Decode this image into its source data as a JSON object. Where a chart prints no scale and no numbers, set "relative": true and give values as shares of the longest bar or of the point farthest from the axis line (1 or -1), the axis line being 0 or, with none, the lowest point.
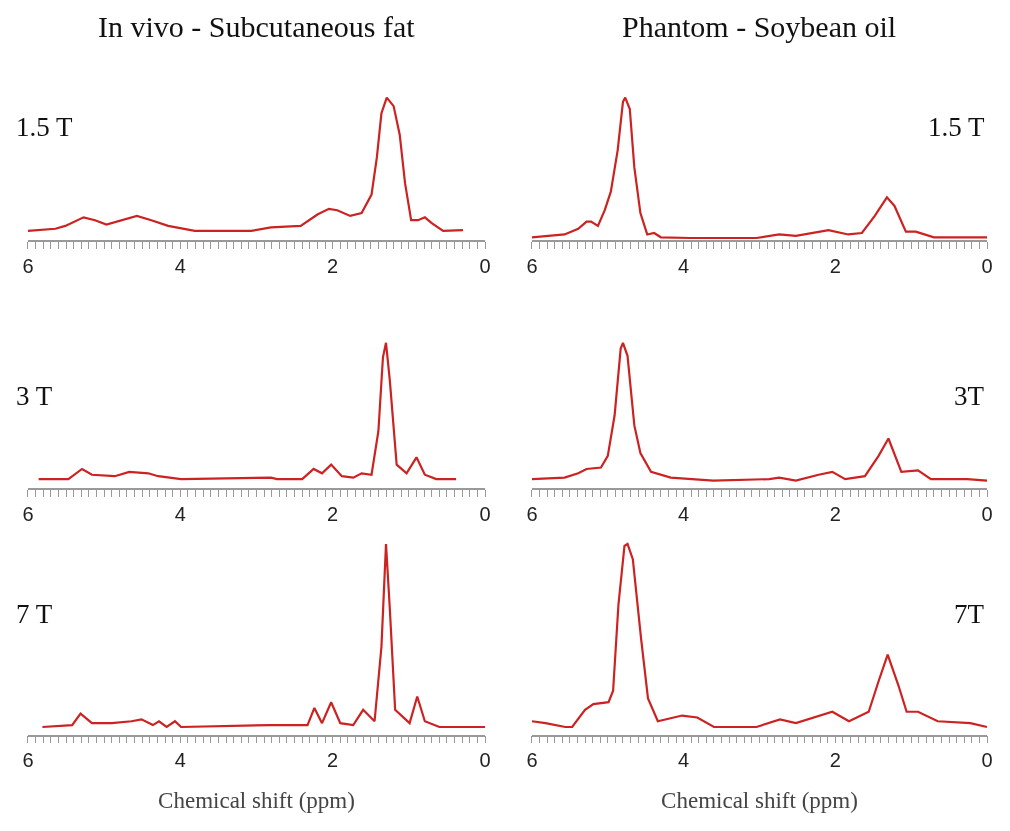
{
  "chart_data": [
    {
      "type": "line",
      "title": "In vivo - Subcutaneous fat",
      "relative": true,
      "annotations": [
        "1.5 T"
      ],
      "xlim": [
        6,
        0
      ],
      "xticks": [
        6,
        {
          "value": 5.9,
          "label": null
        },
        {
          "value": 5.8,
          "label": null
        },
        {
          "value": 5.7,
          "label": null
        },
        {
          "value": 5.6,
          "label": null
        },
        {
          "value": 5.5,
          "label": null
        },
        {
          "value": 5.4,
          "label": null
        },
        {
          "value": 5.3,
          "label": null
        },
        {
          "value": 5.2,
          "label": null
        },
        {
          "value": 5.1,
          "label": null
        },
        {
          "value": 5,
          "label": null
        },
        {
          "value": 4.9,
          "label": null
        },
        {
          "value": 4.8,
          "label": null
        },
        {
          "value": 4.7,
          "label": null
        },
        {
          "value": 4.6,
          "label": null
        },
        {
          "value": 4.5,
          "label": null
        },
        {
          "value": 4.4,
          "label": null
        },
        {
          "value": 4.3,
          "label": null
        },
        {
          "value": 4.2,
          "label": null
        },
        {
          "value": 4.1,
          "label": null
        },
        4,
        {
          "value": 3.9,
          "label": null
        },
        {
          "value": 3.8,
          "label": null
        },
        {
          "value": 3.7,
          "label": null
        },
        {
          "value": 3.6,
          "label": null
        },
        {
          "value": 3.5,
          "label": null
        },
        {
          "value": 3.4,
          "label": null
        },
        {
          "value": 3.3,
          "label": null
        },
        {
          "value": 3.2,
          "label": null
        },
        {
          "value": 3.1,
          "label": null
        },
        {
          "value": 3,
          "label": null
        },
        {
          "value": 2.9,
          "label": null
        },
        {
          "value": 2.8,
          "label": null
        },
        {
          "value": 2.7,
          "label": null
        },
        {
          "value": 2.6,
          "label": null
        },
        {
          "value": 2.5,
          "label": null
        },
        {
          "value": 2.4,
          "label": null
        },
        {
          "value": 2.3,
          "label": null
        },
        {
          "value": 2.2,
          "label": null
        },
        {
          "value": 2.1,
          "label": null
        },
        2,
        {
          "value": 1.9,
          "label": null
        },
        {
          "value": 1.8,
          "label": null
        },
        {
          "value": 1.7,
          "label": null
        },
        {
          "value": 1.6,
          "label": null
        },
        {
          "value": 1.5,
          "label": null
        },
        {
          "value": 1.4,
          "label": null
        },
        {
          "value": 1.3,
          "label": null
        },
        {
          "value": 1.2,
          "label": null
        },
        {
          "value": 1.1,
          "label": null
        },
        {
          "value": 1,
          "label": null
        },
        {
          "value": 0.9,
          "label": null
        },
        {
          "value": 0.8,
          "label": null
        },
        {
          "value": 0.7,
          "label": null
        },
        {
          "value": 0.6,
          "label": null
        },
        {
          "value": 0.5,
          "label": null
        },
        {
          "value": 0.4,
          "label": null
        },
        {
          "value": 0.3,
          "label": null
        },
        {
          "value": 0.2,
          "label": null
        },
        {
          "value": 0.1,
          "label": null
        },
        0
      ],
      "grid": false,
      "legend": false,
      "series": [
        {
          "color": "#cc2222",
          "x": [
            6.0,
            5.64,
            5.51,
            5.27,
            5.12,
            4.97,
            4.57,
            4.38,
            4.16,
            3.81,
            3.07,
            2.81,
            2.42,
            2.2,
            2.05,
            1.94,
            1.77,
            1.62,
            1.49,
            1.42,
            1.36,
            1.29,
            1.2,
            1.12,
            1.05,
            0.97,
            0.88,
            0.79,
            0.7,
            0.55,
            0.29
          ],
          "values": [
            0.065,
            0.08,
            0.1,
            0.16,
            0.14,
            0.11,
            0.17,
            0.14,
            0.1,
            0.065,
            0.065,
            0.09,
            0.1,
            0.18,
            0.22,
            0.21,
            0.17,
            0.19,
            0.32,
            0.58,
            0.89,
            1,
            0.94,
            0.74,
            0.4,
            0.14,
            0.14,
            0.16,
            0.12,
            0.065,
            0.07
          ]
        }
      ]
    },
    {
      "type": "line",
      "title": "Phantom - Soybean oil",
      "relative": true,
      "annotations": [
        "1.5 T"
      ],
      "xlim": [
        6,
        0
      ],
      "xticks": [
        6,
        {
          "value": 5.9,
          "label": null
        },
        {
          "value": 5.8,
          "label": null
        },
        {
          "value": 5.7,
          "label": null
        },
        {
          "value": 5.6,
          "label": null
        },
        {
          "value": 5.5,
          "label": null
        },
        {
          "value": 5.4,
          "label": null
        },
        {
          "value": 5.3,
          "label": null
        },
        {
          "value": 5.2,
          "label": null
        },
        {
          "value": 5.1,
          "label": null
        },
        {
          "value": 5,
          "label": null
        },
        {
          "value": 4.9,
          "label": null
        },
        {
          "value": 4.8,
          "label": null
        },
        {
          "value": 4.7,
          "label": null
        },
        {
          "value": 4.6,
          "label": null
        },
        {
          "value": 4.5,
          "label": null
        },
        {
          "value": 4.4,
          "label": null
        },
        {
          "value": 4.3,
          "label": null
        },
        {
          "value": 4.2,
          "label": null
        },
        {
          "value": 4.1,
          "label": null
        },
        4,
        {
          "value": 3.9,
          "label": null
        },
        {
          "value": 3.8,
          "label": null
        },
        {
          "value": 3.7,
          "label": null
        },
        {
          "value": 3.6,
          "label": null
        },
        {
          "value": 3.5,
          "label": null
        },
        {
          "value": 3.4,
          "label": null
        },
        {
          "value": 3.3,
          "label": null
        },
        {
          "value": 3.2,
          "label": null
        },
        {
          "value": 3.1,
          "label": null
        },
        {
          "value": 3,
          "label": null
        },
        {
          "value": 2.9,
          "label": null
        },
        {
          "value": 2.8,
          "label": null
        },
        {
          "value": 2.7,
          "label": null
        },
        {
          "value": 2.6,
          "label": null
        },
        {
          "value": 2.5,
          "label": null
        },
        {
          "value": 2.4,
          "label": null
        },
        {
          "value": 2.3,
          "label": null
        },
        {
          "value": 2.2,
          "label": null
        },
        {
          "value": 2.1,
          "label": null
        },
        2,
        {
          "value": 1.9,
          "label": null
        },
        {
          "value": 1.8,
          "label": null
        },
        {
          "value": 1.7,
          "label": null
        },
        {
          "value": 1.6,
          "label": null
        },
        {
          "value": 1.5,
          "label": null
        },
        {
          "value": 1.4,
          "label": null
        },
        {
          "value": 1.3,
          "label": null
        },
        {
          "value": 1.2,
          "label": null
        },
        {
          "value": 1.1,
          "label": null
        },
        {
          "value": 1,
          "label": null
        },
        {
          "value": 0.9,
          "label": null
        },
        {
          "value": 0.8,
          "label": null
        },
        {
          "value": 0.7,
          "label": null
        },
        {
          "value": 0.6,
          "label": null
        },
        {
          "value": 0.5,
          "label": null
        },
        {
          "value": 0.4,
          "label": null
        },
        {
          "value": 0.3,
          "label": null
        },
        {
          "value": 0.2,
          "label": null
        },
        {
          "value": 0.1,
          "label": null
        },
        0
      ],
      "grid": false,
      "legend": false,
      "series": [
        {
          "color": "#cc2222",
          "x": [
            6.0,
            5.57,
            5.39,
            5.28,
            5.22,
            5.13,
            5.04,
            4.96,
            4.87,
            4.8,
            4.77,
            4.71,
            4.65,
            4.57,
            4.48,
            4.39,
            4.3,
            3.91,
            3.04,
            2.74,
            2.52,
            2.09,
            1.83,
            1.65,
            1.48,
            1.32,
            1.22,
            1.07,
            0.94,
            0.7,
            0
          ],
          "values": [
            0.02,
            0.04,
            0.08,
            0.13,
            0.13,
            0.1,
            0.21,
            0.34,
            0.63,
            0.97,
            1,
            0.92,
            0.51,
            0.19,
            0.04,
            0.05,
            0.02,
            0.015,
            0.015,
            0.04,
            0.03,
            0.07,
            0.04,
            0.05,
            0.17,
            0.3,
            0.24,
            0.06,
            0.06,
            0.02,
            0.02
          ]
        }
      ]
    },
    {
      "type": "line",
      "relative": true,
      "annotations": [
        "3 T"
      ],
      "xlim": [
        6,
        0
      ],
      "xticks": [
        6,
        {
          "value": 5.9,
          "label": null
        },
        {
          "value": 5.8,
          "label": null
        },
        {
          "value": 5.7,
          "label": null
        },
        {
          "value": 5.6,
          "label": null
        },
        {
          "value": 5.5,
          "label": null
        },
        {
          "value": 5.4,
          "label": null
        },
        {
          "value": 5.3,
          "label": null
        },
        {
          "value": 5.2,
          "label": null
        },
        {
          "value": 5.1,
          "label": null
        },
        {
          "value": 5,
          "label": null
        },
        {
          "value": 4.9,
          "label": null
        },
        {
          "value": 4.8,
          "label": null
        },
        {
          "value": 4.7,
          "label": null
        },
        {
          "value": 4.6,
          "label": null
        },
        {
          "value": 4.5,
          "label": null
        },
        {
          "value": 4.4,
          "label": null
        },
        {
          "value": 4.3,
          "label": null
        },
        {
          "value": 4.2,
          "label": null
        },
        {
          "value": 4.1,
          "label": null
        },
        4,
        {
          "value": 3.9,
          "label": null
        },
        {
          "value": 3.8,
          "label": null
        },
        {
          "value": 3.7,
          "label": null
        },
        {
          "value": 3.6,
          "label": null
        },
        {
          "value": 3.5,
          "label": null
        },
        {
          "value": 3.4,
          "label": null
        },
        {
          "value": 3.3,
          "label": null
        },
        {
          "value": 3.2,
          "label": null
        },
        {
          "value": 3.1,
          "label": null
        },
        {
          "value": 3,
          "label": null
        },
        {
          "value": 2.9,
          "label": null
        },
        {
          "value": 2.8,
          "label": null
        },
        {
          "value": 2.7,
          "label": null
        },
        {
          "value": 2.6,
          "label": null
        },
        {
          "value": 2.5,
          "label": null
        },
        {
          "value": 2.4,
          "label": null
        },
        {
          "value": 2.3,
          "label": null
        },
        {
          "value": 2.2,
          "label": null
        },
        {
          "value": 2.1,
          "label": null
        },
        2,
        {
          "value": 1.9,
          "label": null
        },
        {
          "value": 1.8,
          "label": null
        },
        {
          "value": 1.7,
          "label": null
        },
        {
          "value": 1.6,
          "label": null
        },
        {
          "value": 1.5,
          "label": null
        },
        {
          "value": 1.4,
          "label": null
        },
        {
          "value": 1.3,
          "label": null
        },
        {
          "value": 1.2,
          "label": null
        },
        {
          "value": 1.1,
          "label": null
        },
        {
          "value": 1,
          "label": null
        },
        {
          "value": 0.9,
          "label": null
        },
        {
          "value": 0.8,
          "label": null
        },
        {
          "value": 0.7,
          "label": null
        },
        {
          "value": 0.6,
          "label": null
        },
        {
          "value": 0.5,
          "label": null
        },
        {
          "value": 0.4,
          "label": null
        },
        {
          "value": 0.3,
          "label": null
        },
        {
          "value": 0.2,
          "label": null
        },
        {
          "value": 0.1,
          "label": null
        },
        0
      ],
      "grid": false,
      "legend": false,
      "series": [
        {
          "color": "#cc2222",
          "x": [
            5.86,
            5.47,
            5.29,
            5.16,
            4.86,
            4.67,
            4.42,
            4.29,
            3.99,
            2.81,
            2.73,
            2.4,
            2.25,
            2.14,
            2.02,
            1.88,
            1.73,
            1.62,
            1.49,
            1.4,
            1.34,
            1.3,
            1.25,
            1.16,
            1.03,
            0.9,
            0.79,
            0.64,
            0.38
          ],
          "values": [
            0.06,
            0.06,
            0.13,
            0.09,
            0.08,
            0.11,
            0.1,
            0.08,
            0.06,
            0.07,
            0.06,
            0.06,
            0.13,
            0.1,
            0.16,
            0.08,
            0.07,
            0.1,
            0.09,
            0.39,
            0.9,
            1,
            0.74,
            0.16,
            0.1,
            0.21,
            0.09,
            0.06,
            0.06
          ]
        }
      ]
    },
    {
      "type": "line",
      "relative": true,
      "annotations": [
        "3T"
      ],
      "xlim": [
        6,
        0
      ],
      "xticks": [
        6,
        {
          "value": 5.9,
          "label": null
        },
        {
          "value": 5.8,
          "label": null
        },
        {
          "value": 5.7,
          "label": null
        },
        {
          "value": 5.6,
          "label": null
        },
        {
          "value": 5.5,
          "label": null
        },
        {
          "value": 5.4,
          "label": null
        },
        {
          "value": 5.3,
          "label": null
        },
        {
          "value": 5.2,
          "label": null
        },
        {
          "value": 5.1,
          "label": null
        },
        {
          "value": 5,
          "label": null
        },
        {
          "value": 4.9,
          "label": null
        },
        {
          "value": 4.8,
          "label": null
        },
        {
          "value": 4.7,
          "label": null
        },
        {
          "value": 4.6,
          "label": null
        },
        {
          "value": 4.5,
          "label": null
        },
        {
          "value": 4.4,
          "label": null
        },
        {
          "value": 4.3,
          "label": null
        },
        {
          "value": 4.2,
          "label": null
        },
        {
          "value": 4.1,
          "label": null
        },
        4,
        {
          "value": 3.9,
          "label": null
        },
        {
          "value": 3.8,
          "label": null
        },
        {
          "value": 3.7,
          "label": null
        },
        {
          "value": 3.6,
          "label": null
        },
        {
          "value": 3.5,
          "label": null
        },
        {
          "value": 3.4,
          "label": null
        },
        {
          "value": 3.3,
          "label": null
        },
        {
          "value": 3.2,
          "label": null
        },
        {
          "value": 3.1,
          "label": null
        },
        {
          "value": 3,
          "label": null
        },
        {
          "value": 2.9,
          "label": null
        },
        {
          "value": 2.8,
          "label": null
        },
        {
          "value": 2.7,
          "label": null
        },
        {
          "value": 2.6,
          "label": null
        },
        {
          "value": 2.5,
          "label": null
        },
        {
          "value": 2.4,
          "label": null
        },
        {
          "value": 2.3,
          "label": null
        },
        {
          "value": 2.2,
          "label": null
        },
        {
          "value": 2.1,
          "label": null
        },
        2,
        {
          "value": 1.9,
          "label": null
        },
        {
          "value": 1.8,
          "label": null
        },
        {
          "value": 1.7,
          "label": null
        },
        {
          "value": 1.6,
          "label": null
        },
        {
          "value": 1.5,
          "label": null
        },
        {
          "value": 1.4,
          "label": null
        },
        {
          "value": 1.3,
          "label": null
        },
        {
          "value": 1.2,
          "label": null
        },
        {
          "value": 1.1,
          "label": null
        },
        {
          "value": 1,
          "label": null
        },
        {
          "value": 0.9,
          "label": null
        },
        {
          "value": 0.8,
          "label": null
        },
        {
          "value": 0.7,
          "label": null
        },
        {
          "value": 0.6,
          "label": null
        },
        {
          "value": 0.5,
          "label": null
        },
        {
          "value": 0.4,
          "label": null
        },
        {
          "value": 0.3,
          "label": null
        },
        {
          "value": 0.2,
          "label": null
        },
        {
          "value": 0.1,
          "label": null
        },
        0
      ],
      "grid": false,
      "legend": false,
      "series": [
        {
          "color": "#cc2222",
          "x": [
            6.0,
            5.57,
            5.39,
            5.28,
            5.09,
            5.0,
            4.91,
            4.83,
            4.8,
            4.74,
            4.65,
            4.57,
            4.43,
            4.17,
            3.61,
            2.87,
            2.74,
            2.52,
            2.22,
            2.04,
            1.87,
            1.61,
            1.43,
            1.3,
            1.13,
            0.91,
            0.74,
            0.26,
            0
          ],
          "values": [
            0.06,
            0.07,
            0.1,
            0.13,
            0.14,
            0.22,
            0.5,
            0.96,
            1,
            0.91,
            0.43,
            0.24,
            0.11,
            0.07,
            0.05,
            0.06,
            0.07,
            0.05,
            0.09,
            0.11,
            0.06,
            0.08,
            0.22,
            0.34,
            0.11,
            0.12,
            0.06,
            0.06,
            0.05
          ]
        }
      ]
    },
    {
      "type": "line",
      "relative": true,
      "annotations": [
        "7 T"
      ],
      "xlabel": "Chemical shift (ppm)",
      "xlim": [
        6,
        0
      ],
      "xticks": [
        6,
        {
          "value": 5.9,
          "label": null
        },
        {
          "value": 5.8,
          "label": null
        },
        {
          "value": 5.7,
          "label": null
        },
        {
          "value": 5.6,
          "label": null
        },
        {
          "value": 5.5,
          "label": null
        },
        {
          "value": 5.4,
          "label": null
        },
        {
          "value": 5.3,
          "label": null
        },
        {
          "value": 5.2,
          "label": null
        },
        {
          "value": 5.1,
          "label": null
        },
        {
          "value": 5,
          "label": null
        },
        {
          "value": 4.9,
          "label": null
        },
        {
          "value": 4.8,
          "label": null
        },
        {
          "value": 4.7,
          "label": null
        },
        {
          "value": 4.6,
          "label": null
        },
        {
          "value": 4.5,
          "label": null
        },
        {
          "value": 4.4,
          "label": null
        },
        {
          "value": 4.3,
          "label": null
        },
        {
          "value": 4.2,
          "label": null
        },
        {
          "value": 4.1,
          "label": null
        },
        4,
        {
          "value": 3.9,
          "label": null
        },
        {
          "value": 3.8,
          "label": null
        },
        {
          "value": 3.7,
          "label": null
        },
        {
          "value": 3.6,
          "label": null
        },
        {
          "value": 3.5,
          "label": null
        },
        {
          "value": 3.4,
          "label": null
        },
        {
          "value": 3.3,
          "label": null
        },
        {
          "value": 3.2,
          "label": null
        },
        {
          "value": 3.1,
          "label": null
        },
        {
          "value": 3,
          "label": null
        },
        {
          "value": 2.9,
          "label": null
        },
        {
          "value": 2.8,
          "label": null
        },
        {
          "value": 2.7,
          "label": null
        },
        {
          "value": 2.6,
          "label": null
        },
        {
          "value": 2.5,
          "label": null
        },
        {
          "value": 2.4,
          "label": null
        },
        {
          "value": 2.3,
          "label": null
        },
        {
          "value": 2.2,
          "label": null
        },
        {
          "value": 2.1,
          "label": null
        },
        2,
        {
          "value": 1.9,
          "label": null
        },
        {
          "value": 1.8,
          "label": null
        },
        {
          "value": 1.7,
          "label": null
        },
        {
          "value": 1.6,
          "label": null
        },
        {
          "value": 1.5,
          "label": null
        },
        {
          "value": 1.4,
          "label": null
        },
        {
          "value": 1.3,
          "label": null
        },
        {
          "value": 1.2,
          "label": null
        },
        {
          "value": 1.1,
          "label": null
        },
        {
          "value": 1,
          "label": null
        },
        {
          "value": 0.9,
          "label": null
        },
        {
          "value": 0.8,
          "label": null
        },
        {
          "value": 0.7,
          "label": null
        },
        {
          "value": 0.6,
          "label": null
        },
        {
          "value": 0.5,
          "label": null
        },
        {
          "value": 0.4,
          "label": null
        },
        {
          "value": 0.3,
          "label": null
        },
        {
          "value": 0.2,
          "label": null
        },
        {
          "value": 0.1,
          "label": null
        },
        0
      ],
      "grid": false,
      "legend": false,
      "series": [
        {
          "color": "#cc2222",
          "x": [
            5.81,
            5.42,
            5.31,
            5.16,
            4.9,
            4.64,
            4.51,
            4.36,
            4.28,
            4.18,
            4.07,
            3.99,
            2.81,
            2.47,
            2.33,
            2.24,
            2.14,
            2.02,
            1.9,
            1.73,
            1.6,
            1.45,
            1.36,
            1.3,
            1.25,
            1.18,
            0.99,
            0.89,
            0.79,
            0.6,
            0
          ],
          "values": [
            0.04,
            0.05,
            0.11,
            0.06,
            0.06,
            0.07,
            0.08,
            0.05,
            0.07,
            0.04,
            0.07,
            0.04,
            0.05,
            0.05,
            0.05,
            0.14,
            0.06,
            0.17,
            0.06,
            0.05,
            0.13,
            0.07,
            0.46,
            1,
            0.66,
            0.13,
            0.06,
            0.2,
            0.07,
            0.04,
            0.04
          ]
        }
      ]
    },
    {
      "type": "line",
      "relative": true,
      "annotations": [
        "7T"
      ],
      "xlabel": "Chemical shift (ppm)",
      "xlim": [
        6,
        0
      ],
      "xticks": [
        6,
        {
          "value": 5.9,
          "label": null
        },
        {
          "value": 5.8,
          "label": null
        },
        {
          "value": 5.7,
          "label": null
        },
        {
          "value": 5.6,
          "label": null
        },
        {
          "value": 5.5,
          "label": null
        },
        {
          "value": 5.4,
          "label": null
        },
        {
          "value": 5.3,
          "label": null
        },
        {
          "value": 5.2,
          "label": null
        },
        {
          "value": 5.1,
          "label": null
        },
        {
          "value": 5,
          "label": null
        },
        {
          "value": 4.9,
          "label": null
        },
        {
          "value": 4.8,
          "label": null
        },
        {
          "value": 4.7,
          "label": null
        },
        {
          "value": 4.6,
          "label": null
        },
        {
          "value": 4.5,
          "label": null
        },
        {
          "value": 4.4,
          "label": null
        },
        {
          "value": 4.3,
          "label": null
        },
        {
          "value": 4.2,
          "label": null
        },
        {
          "value": 4.1,
          "label": null
        },
        4,
        {
          "value": 3.9,
          "label": null
        },
        {
          "value": 3.8,
          "label": null
        },
        {
          "value": 3.7,
          "label": null
        },
        {
          "value": 3.6,
          "label": null
        },
        {
          "value": 3.5,
          "label": null
        },
        {
          "value": 3.4,
          "label": null
        },
        {
          "value": 3.3,
          "label": null
        },
        {
          "value": 3.2,
          "label": null
        },
        {
          "value": 3.1,
          "label": null
        },
        {
          "value": 3,
          "label": null
        },
        {
          "value": 2.9,
          "label": null
        },
        {
          "value": 2.8,
          "label": null
        },
        {
          "value": 2.7,
          "label": null
        },
        {
          "value": 2.6,
          "label": null
        },
        {
          "value": 2.5,
          "label": null
        },
        {
          "value": 2.4,
          "label": null
        },
        {
          "value": 2.3,
          "label": null
        },
        {
          "value": 2.2,
          "label": null
        },
        {
          "value": 2.1,
          "label": null
        },
        2,
        {
          "value": 1.9,
          "label": null
        },
        {
          "value": 1.8,
          "label": null
        },
        {
          "value": 1.7,
          "label": null
        },
        {
          "value": 1.6,
          "label": null
        },
        {
          "value": 1.5,
          "label": null
        },
        {
          "value": 1.4,
          "label": null
        },
        {
          "value": 1.3,
          "label": null
        },
        {
          "value": 1.2,
          "label": null
        },
        {
          "value": 1.1,
          "label": null
        },
        {
          "value": 1,
          "label": null
        },
        {
          "value": 0.9,
          "label": null
        },
        {
          "value": 0.8,
          "label": null
        },
        {
          "value": 0.7,
          "label": null
        },
        {
          "value": 0.6,
          "label": null
        },
        {
          "value": 0.5,
          "label": null
        },
        {
          "value": 0.4,
          "label": null
        },
        {
          "value": 0.3,
          "label": null
        },
        {
          "value": 0.2,
          "label": null
        },
        {
          "value": 0.1,
          "label": null
        },
        0
      ],
      "grid": false,
      "legend": false,
      "series": [
        {
          "color": "#cc2222",
          "x": [
            6,
            5.82,
            5.56,
            5.47,
            5.3,
            5.19,
            4.99,
            4.93,
            4.86,
            4.78,
            4.74,
            4.67,
            4.56,
            4.47,
            4.34,
            4.02,
            3.82,
            3.6,
            3.04,
            2.73,
            2.52,
            2.04,
            1.82,
            1.56,
            1.43,
            1.31,
            1.17,
            1.06,
            0.91,
            0.65,
            0.22,
            0
          ],
          "values": [
            0.07,
            0.06,
            0.04,
            0.04,
            0.13,
            0.16,
            0.17,
            0.23,
            0.68,
            0.99,
            1,
            0.92,
            0.5,
            0.19,
            0.07,
            0.1,
            0.09,
            0.04,
            0.04,
            0.08,
            0.06,
            0.12,
            0.07,
            0.12,
            0.28,
            0.42,
            0.26,
            0.12,
            0.12,
            0.07,
            0.06,
            0.04
          ]
        }
      ]
    }
  ]
}
